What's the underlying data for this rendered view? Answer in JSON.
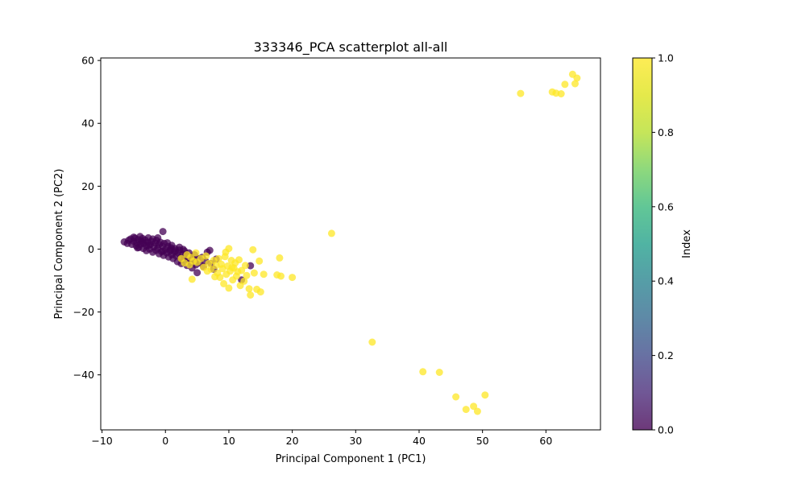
{
  "chart_data": {
    "type": "scatter",
    "title": "333346_PCA scatterplot all-all",
    "xlabel": "Principal Component 1 (PC1)",
    "ylabel": "Principal Component 2 (PC2)",
    "xlim": [
      -10.2,
      68.6
    ],
    "ylim": [
      -57.5,
      60.8
    ],
    "xticks": [
      -10,
      0,
      10,
      20,
      30,
      40,
      50,
      60
    ],
    "yticks": [
      -40,
      -20,
      0,
      20,
      40,
      60
    ],
    "xtick_labels": [
      "−10",
      "0",
      "10",
      "20",
      "30",
      "40",
      "50",
      "60"
    ],
    "ytick_labels": [
      "−40",
      "−20",
      "0",
      "20",
      "40",
      "60"
    ],
    "grid": false,
    "colorbar": {
      "label": "Index",
      "range": [
        0,
        1
      ],
      "ticks": [
        0.0,
        0.2,
        0.4,
        0.6,
        0.8,
        1.0
      ],
      "tick_labels": [
        "0.0",
        "0.2",
        "0.4",
        "0.6",
        "0.8",
        "1.0"
      ],
      "colormap": "viridis"
    },
    "colors": {
      "index_0": "#440154",
      "index_1": "#fde725"
    },
    "series": [
      {
        "index_value": 0,
        "points": [
          [
            -6.5,
            2.3
          ],
          [
            -6.0,
            1.8
          ],
          [
            -5.8,
            2.8
          ],
          [
            -5.5,
            3.2
          ],
          [
            -5.3,
            1.5
          ],
          [
            -5.0,
            2.5
          ],
          [
            -4.8,
            3.5
          ],
          [
            -4.6,
            1.0
          ],
          [
            -4.5,
            2.0
          ],
          [
            -4.3,
            3.0
          ],
          [
            -4.2,
            0.5
          ],
          [
            -4.0,
            4.0
          ],
          [
            -4.0,
            1.5
          ],
          [
            -3.8,
            2.6
          ],
          [
            -3.6,
            3.4
          ],
          [
            -3.5,
            0.2
          ],
          [
            -3.4,
            1.8
          ],
          [
            -3.2,
            2.9
          ],
          [
            -3.0,
            -0.5
          ],
          [
            -3.0,
            1.0
          ],
          [
            -2.8,
            2.2
          ],
          [
            -2.7,
            3.6
          ],
          [
            -2.5,
            0.0
          ],
          [
            -2.4,
            1.4
          ],
          [
            -2.2,
            2.5
          ],
          [
            -2.0,
            -1.0
          ],
          [
            -2.0,
            3.2
          ],
          [
            -1.8,
            0.8
          ],
          [
            -1.6,
            1.9
          ],
          [
            -1.5,
            -0.4
          ],
          [
            -1.4,
            2.8
          ],
          [
            -1.2,
            0.3
          ],
          [
            -1.0,
            1.5
          ],
          [
            -1.0,
            -1.5
          ],
          [
            -0.8,
            2.2
          ],
          [
            -0.6,
            -0.8
          ],
          [
            -0.5,
            0.9
          ],
          [
            -0.4,
            5.6
          ],
          [
            -0.3,
            -2.0
          ],
          [
            -0.2,
            1.8
          ],
          [
            0.0,
            -0.2
          ],
          [
            0.2,
            -1.2
          ],
          [
            0.4,
            0.8
          ],
          [
            0.5,
            -2.5
          ],
          [
            0.7,
            -0.6
          ],
          [
            0.9,
            0.4
          ],
          [
            1.0,
            -1.8
          ],
          [
            1.2,
            -3.0
          ],
          [
            1.4,
            -0.9
          ],
          [
            1.5,
            0.2
          ],
          [
            1.7,
            -2.2
          ],
          [
            1.9,
            -4.0
          ],
          [
            2.0,
            -1.3
          ],
          [
            2.2,
            -0.3
          ],
          [
            2.4,
            -2.8
          ],
          [
            2.5,
            -4.6
          ],
          [
            2.7,
            -1.6
          ],
          [
            2.9,
            -3.4
          ],
          [
            3.0,
            -0.6
          ],
          [
            3.2,
            -2.0
          ],
          [
            3.4,
            -5.2
          ],
          [
            3.5,
            -3.0
          ],
          [
            3.7,
            -1.2
          ],
          [
            3.9,
            -4.2
          ],
          [
            4.0,
            -2.4
          ],
          [
            4.2,
            -6.0
          ],
          [
            4.4,
            -3.6
          ],
          [
            4.6,
            -1.8
          ],
          [
            4.8,
            -5.0
          ],
          [
            5.0,
            -7.5
          ],
          [
            5.1,
            -3.0
          ],
          [
            5.4,
            -4.4
          ],
          [
            5.8,
            -2.6
          ],
          [
            6.0,
            -5.6
          ],
          [
            6.3,
            -3.8
          ],
          [
            6.6,
            -1.0
          ],
          [
            7.0,
            -0.4
          ],
          [
            7.2,
            -4.6
          ],
          [
            7.6,
            -6.4
          ],
          [
            8.0,
            -3.2
          ],
          [
            12.0,
            -9.8
          ],
          [
            13.4,
            -5.3
          ],
          [
            2.2,
            0.6
          ],
          [
            1.0,
            1.2
          ],
          [
            -0.4,
            -0.6
          ],
          [
            0.8,
            -0.2
          ],
          [
            -2.6,
            1.2
          ],
          [
            -3.6,
            2.2
          ],
          [
            -5.0,
            3.8
          ],
          [
            -1.2,
            3.6
          ],
          [
            -4.4,
            0.4
          ],
          [
            0.3,
            2.0
          ],
          [
            1.6,
            -0.5
          ],
          [
            2.8,
            -0.1
          ]
        ]
      },
      {
        "index_value": 1,
        "points": [
          [
            2.5,
            -3.0
          ],
          [
            3.0,
            -4.4
          ],
          [
            3.4,
            -1.8
          ],
          [
            3.8,
            -5.0
          ],
          [
            4.0,
            -2.6
          ],
          [
            4.2,
            -9.6
          ],
          [
            4.4,
            -3.8
          ],
          [
            4.8,
            -1.2
          ],
          [
            5.0,
            -4.2
          ],
          [
            5.6,
            -3.0
          ],
          [
            6.0,
            -5.8
          ],
          [
            6.4,
            -2.2
          ],
          [
            6.8,
            -4.6
          ],
          [
            7.2,
            -6.4
          ],
          [
            7.6,
            -3.6
          ],
          [
            8.0,
            -5.2
          ],
          [
            8.2,
            -7.6
          ],
          [
            8.4,
            -3.0
          ],
          [
            8.6,
            -9.0
          ],
          [
            8.8,
            -4.8
          ],
          [
            9.0,
            -6.2
          ],
          [
            9.2,
            -11.0
          ],
          [
            9.4,
            -2.4
          ],
          [
            9.6,
            -8.0
          ],
          [
            9.8,
            -5.4
          ],
          [
            10.0,
            0.2
          ],
          [
            10.0,
            -12.4
          ],
          [
            10.2,
            -7.0
          ],
          [
            10.4,
            -3.6
          ],
          [
            10.6,
            -9.8
          ],
          [
            10.8,
            -6.0
          ],
          [
            11.0,
            -4.4
          ],
          [
            11.2,
            -8.6
          ],
          [
            11.6,
            -3.4
          ],
          [
            11.8,
            -11.6
          ],
          [
            12.0,
            -6.8
          ],
          [
            12.4,
            -10.2
          ],
          [
            12.6,
            -5.2
          ],
          [
            12.8,
            -8.4
          ],
          [
            13.2,
            -12.6
          ],
          [
            13.4,
            -14.6
          ],
          [
            13.8,
            -0.2
          ],
          [
            14.0,
            -7.6
          ],
          [
            14.4,
            -12.8
          ],
          [
            14.8,
            -3.8
          ],
          [
            15.0,
            -13.6
          ],
          [
            15.5,
            -8.0
          ],
          [
            17.6,
            -8.2
          ],
          [
            18.0,
            -2.8
          ],
          [
            18.2,
            -8.6
          ],
          [
            20.0,
            -9.0
          ],
          [
            9.5,
            -1.0
          ],
          [
            10.5,
            -5.8
          ],
          [
            11.4,
            -7.2
          ],
          [
            7.8,
            -8.8
          ],
          [
            6.6,
            -7.0
          ],
          [
            26.2,
            5.0
          ],
          [
            32.6,
            -29.6
          ],
          [
            40.6,
            -39.0
          ],
          [
            43.2,
            -39.2
          ],
          [
            45.8,
            -47.0
          ],
          [
            47.4,
            -51.0
          ],
          [
            48.6,
            -50.0
          ],
          [
            49.2,
            -51.6
          ],
          [
            50.4,
            -46.4
          ],
          [
            56.0,
            49.5
          ],
          [
            61.0,
            50.0
          ],
          [
            61.6,
            49.6
          ],
          [
            62.4,
            49.4
          ],
          [
            63.0,
            52.4
          ],
          [
            64.2,
            55.6
          ],
          [
            64.6,
            52.6
          ],
          [
            64.9,
            54.4
          ]
        ]
      }
    ]
  }
}
